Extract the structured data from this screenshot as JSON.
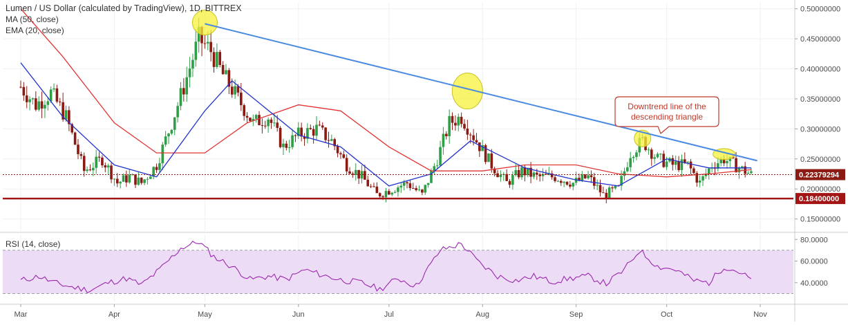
{
  "header": {
    "title": "Lumen / US Dollar (calculated by TradingView), 1D, BITTREX",
    "indicators": [
      "MA (50, close)",
      "EMA (20, close)"
    ]
  },
  "rsi_label": "RSI (14, close)",
  "annotation": {
    "text_line1": "Downtrend line of the",
    "text_line2": "descending triangle"
  },
  "colors": {
    "candle_up": "#2e9e47",
    "candle_down": "#8b1a12",
    "ma50": "#e23333",
    "ema20": "#2233cc",
    "trendline": "#4a8ae0",
    "support": "#a31515",
    "highlight": "#f5f03a",
    "rsi_line": "#9b27b0",
    "rsi_band": "#eddcf5"
  },
  "chart_data": {
    "type": "candlestick",
    "title": "Lumen / US Dollar (calculated by TradingView), 1D, BITTREX",
    "x_range": [
      "2018-03-01",
      "2018-11-01"
    ],
    "x_ticks": [
      "Mar",
      "Apr",
      "May",
      "Jun",
      "Jul",
      "Aug",
      "Sep",
      "Oct",
      "Nov"
    ],
    "x_tick_dates": [
      "2018-03-01",
      "2018-04-01",
      "2018-05-01",
      "2018-06-01",
      "2018-07-01",
      "2018-08-01",
      "2018-09-01",
      "2018-10-01",
      "2018-11-01"
    ],
    "y_ticks": [
      "0.50000000",
      "0.45000000",
      "0.40000000",
      "0.35000000",
      "0.30000000",
      "0.25000000",
      "0.20000000",
      "0.15000000"
    ],
    "y_tick_values": [
      0.5,
      0.45,
      0.4,
      0.35,
      0.3,
      0.25,
      0.2,
      0.15
    ],
    "ylim": [
      0.13,
      0.51
    ],
    "last_price_label": "0.22379294",
    "last_price": 0.22379294,
    "support_label": "0.18400000",
    "support": 0.184,
    "price_path": [
      [
        "2018-03-01",
        0.37
      ],
      [
        "2018-03-06",
        0.34
      ],
      [
        "2018-03-11",
        0.36
      ],
      [
        "2018-03-16",
        0.32
      ],
      [
        "2018-03-22",
        0.23
      ],
      [
        "2018-03-28",
        0.25
      ],
      [
        "2018-04-02",
        0.21
      ],
      [
        "2018-04-06",
        0.22
      ],
      [
        "2018-04-10",
        0.21
      ],
      [
        "2018-04-15",
        0.24
      ],
      [
        "2018-04-20",
        0.31
      ],
      [
        "2018-04-24",
        0.37
      ],
      [
        "2018-04-29",
        0.45
      ],
      [
        "2018-05-03",
        0.43
      ],
      [
        "2018-05-07",
        0.39
      ],
      [
        "2018-05-12",
        0.35
      ],
      [
        "2018-05-17",
        0.31
      ],
      [
        "2018-05-22",
        0.32
      ],
      [
        "2018-05-27",
        0.27
      ],
      [
        "2018-06-01",
        0.29
      ],
      [
        "2018-06-07",
        0.3
      ],
      [
        "2018-06-12",
        0.28
      ],
      [
        "2018-06-17",
        0.24
      ],
      [
        "2018-06-22",
        0.22
      ],
      [
        "2018-06-27",
        0.19
      ],
      [
        "2018-07-02",
        0.2
      ],
      [
        "2018-07-07",
        0.21
      ],
      [
        "2018-07-12",
        0.19
      ],
      [
        "2018-07-17",
        0.25
      ],
      [
        "2018-07-21",
        0.31
      ],
      [
        "2018-07-25",
        0.32
      ],
      [
        "2018-07-30",
        0.28
      ],
      [
        "2018-08-04",
        0.24
      ],
      [
        "2018-08-09",
        0.21
      ],
      [
        "2018-08-14",
        0.23
      ],
      [
        "2018-08-19",
        0.22
      ],
      [
        "2018-08-25",
        0.22
      ],
      [
        "2018-08-31",
        0.21
      ],
      [
        "2018-09-05",
        0.22
      ],
      [
        "2018-09-10",
        0.19
      ],
      [
        "2018-09-15",
        0.2
      ],
      [
        "2018-09-19",
        0.26
      ],
      [
        "2018-09-23",
        0.28
      ],
      [
        "2018-09-28",
        0.25
      ],
      [
        "2018-10-03",
        0.24
      ],
      [
        "2018-10-08",
        0.24
      ],
      [
        "2018-10-12",
        0.21
      ],
      [
        "2018-10-16",
        0.24
      ],
      [
        "2018-10-20",
        0.25
      ],
      [
        "2018-10-25",
        0.235
      ],
      [
        "2018-10-29",
        0.224
      ]
    ],
    "ma50_path": [
      [
        "2018-03-01",
        0.5
      ],
      [
        "2018-03-15",
        0.42
      ],
      [
        "2018-04-01",
        0.31
      ],
      [
        "2018-04-15",
        0.26
      ],
      [
        "2018-05-01",
        0.26
      ],
      [
        "2018-05-15",
        0.31
      ],
      [
        "2018-06-01",
        0.34
      ],
      [
        "2018-06-15",
        0.33
      ],
      [
        "2018-07-01",
        0.27
      ],
      [
        "2018-07-15",
        0.23
      ],
      [
        "2018-08-01",
        0.23
      ],
      [
        "2018-08-15",
        0.24
      ],
      [
        "2018-09-01",
        0.24
      ],
      [
        "2018-09-15",
        0.225
      ],
      [
        "2018-10-01",
        0.22
      ],
      [
        "2018-10-15",
        0.225
      ],
      [
        "2018-10-29",
        0.232
      ]
    ],
    "ema20_path": [
      [
        "2018-03-01",
        0.41
      ],
      [
        "2018-03-15",
        0.32
      ],
      [
        "2018-04-01",
        0.24
      ],
      [
        "2018-04-15",
        0.22
      ],
      [
        "2018-05-01",
        0.33
      ],
      [
        "2018-05-10",
        0.38
      ],
      [
        "2018-06-01",
        0.29
      ],
      [
        "2018-06-15",
        0.27
      ],
      [
        "2018-07-01",
        0.205
      ],
      [
        "2018-07-15",
        0.225
      ],
      [
        "2018-07-28",
        0.28
      ],
      [
        "2018-08-15",
        0.235
      ],
      [
        "2018-09-01",
        0.215
      ],
      [
        "2018-09-15",
        0.205
      ],
      [
        "2018-10-01",
        0.25
      ],
      [
        "2018-10-15",
        0.235
      ],
      [
        "2018-10-29",
        0.235
      ]
    ],
    "trendline": [
      [
        "2018-05-01",
        0.475
      ],
      [
        "2018-10-31",
        0.247
      ]
    ],
    "highlights": [
      {
        "date": "2018-05-01",
        "value": 0.477
      },
      {
        "date": "2018-07-27",
        "value": 0.363
      },
      {
        "date": "2018-09-23",
        "value": 0.284
      },
      {
        "date": "2018-10-20",
        "value": 0.258
      }
    ],
    "rsi": {
      "label": "RSI (14, close)",
      "y_ticks": [
        "80.0000",
        "60.0000",
        "40.0000"
      ],
      "y_tick_values": [
        80,
        60,
        40
      ],
      "ylim": [
        22,
        84
      ],
      "band": [
        30,
        70
      ],
      "path": [
        [
          "2018-03-01",
          42
        ],
        [
          "2018-03-07",
          46
        ],
        [
          "2018-03-12",
          40
        ],
        [
          "2018-03-18",
          36
        ],
        [
          "2018-03-24",
          33
        ],
        [
          "2018-03-30",
          40
        ],
        [
          "2018-04-05",
          44
        ],
        [
          "2018-04-10",
          38
        ],
        [
          "2018-04-16",
          52
        ],
        [
          "2018-04-23",
          72
        ],
        [
          "2018-04-29",
          78
        ],
        [
          "2018-05-04",
          64
        ],
        [
          "2018-05-10",
          55
        ],
        [
          "2018-05-16",
          43
        ],
        [
          "2018-05-22",
          46
        ],
        [
          "2018-05-28",
          43
        ],
        [
          "2018-06-03",
          52
        ],
        [
          "2018-06-09",
          47
        ],
        [
          "2018-06-16",
          42
        ],
        [
          "2018-06-22",
          40
        ],
        [
          "2018-06-28",
          34
        ],
        [
          "2018-07-04",
          44
        ],
        [
          "2018-07-10",
          37
        ],
        [
          "2018-07-18",
          70
        ],
        [
          "2018-07-25",
          76
        ],
        [
          "2018-07-31",
          58
        ],
        [
          "2018-08-06",
          46
        ],
        [
          "2018-08-12",
          42
        ],
        [
          "2018-08-18",
          46
        ],
        [
          "2018-08-24",
          41
        ],
        [
          "2018-08-30",
          44
        ],
        [
          "2018-09-05",
          46
        ],
        [
          "2018-09-11",
          39
        ],
        [
          "2018-09-17",
          52
        ],
        [
          "2018-09-22",
          70
        ],
        [
          "2018-09-28",
          55
        ],
        [
          "2018-10-04",
          52
        ],
        [
          "2018-10-10",
          42
        ],
        [
          "2018-10-15",
          40
        ],
        [
          "2018-10-20",
          55
        ],
        [
          "2018-10-25",
          50
        ],
        [
          "2018-10-29",
          43
        ]
      ]
    }
  }
}
